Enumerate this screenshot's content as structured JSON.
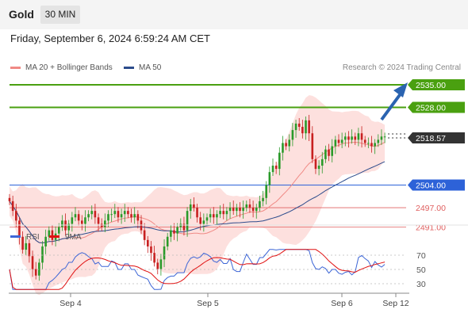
{
  "header": {
    "title": "Gold",
    "timeframe": "30 MIN"
  },
  "datetime": "Friday, September 6, 2024 6:59:24 AM CET",
  "legend": {
    "ma20": {
      "label": "MA 20 + Bollinger Bands",
      "color": "#f08a85"
    },
    "ma50": {
      "label": "MA 50",
      "color": "#2c4c8c"
    }
  },
  "credit": "Research © 2024 Trading Central",
  "colors": {
    "up": "#2a9a2a",
    "down": "#c82020",
    "target": "#4aa010",
    "support_line": "#2d62d8",
    "minor_support": "#e06060",
    "arrow": "#2a63b0"
  },
  "chart_data": [
    {
      "type": "candlestick",
      "title": "Gold",
      "timeframe": "30 MIN",
      "x_ticks": [
        "Sep 4",
        "Sep 5",
        "Sep 6",
        "Sep 12"
      ],
      "ylim": [
        2470,
        2545
      ],
      "levels": [
        {
          "label": "2535.00",
          "value": 2535.0,
          "kind": "target"
        },
        {
          "label": "2528.00",
          "value": 2528.0,
          "kind": "target"
        },
        {
          "label": "2518.57",
          "value": 2518.57,
          "kind": "last"
        },
        {
          "label": "2504.00",
          "value": 2504.0,
          "kind": "pivot"
        },
        {
          "label": "2497.00",
          "value": 2497.0,
          "kind": "support"
        },
        {
          "label": "2491.00",
          "value": 2491.0,
          "kind": "support"
        }
      ],
      "close": [
        2499,
        2496,
        2493,
        2488,
        2484,
        2486,
        2482,
        2478,
        2476,
        2480,
        2485,
        2488,
        2490,
        2487,
        2489,
        2491,
        2493,
        2490,
        2492,
        2494,
        2495,
        2493,
        2492,
        2494,
        2495,
        2496,
        2494,
        2492,
        2491,
        2493,
        2495,
        2495,
        2496,
        2494,
        2495,
        2496,
        2495,
        2494,
        2495,
        2493,
        2490,
        2487,
        2485,
        2483,
        2480,
        2478,
        2481,
        2485,
        2488,
        2490,
        2489,
        2491,
        2492,
        2490,
        2496,
        2498,
        2497,
        2494,
        2492,
        2493,
        2494,
        2495,
        2494,
        2495,
        2496,
        2495,
        2496,
        2497,
        2496,
        2497,
        2496,
        2497,
        2498,
        2497,
        2496,
        2497,
        2499,
        2500,
        2504,
        2508,
        2510,
        2509,
        2514,
        2517,
        2516,
        2518,
        2521,
        2523,
        2522,
        2520,
        2524,
        2520,
        2512,
        2509,
        2510,
        2512,
        2515,
        2513,
        2516,
        2518,
        2517,
        2518,
        2519,
        2518,
        2519,
        2518,
        2520,
        2518,
        2517,
        2517,
        2516,
        2517,
        2518,
        2519,
        2519
      ],
      "indicators": [
        "MA 20 + Bollinger Bands",
        "MA 50"
      ]
    },
    {
      "type": "line",
      "series": [
        {
          "name": "RSI",
          "color": "#3d66d6"
        },
        {
          "name": "9MA",
          "color": "#e01010"
        }
      ],
      "y_ticks": [
        70,
        50,
        30
      ],
      "ylim": [
        20,
        80
      ]
    }
  ]
}
